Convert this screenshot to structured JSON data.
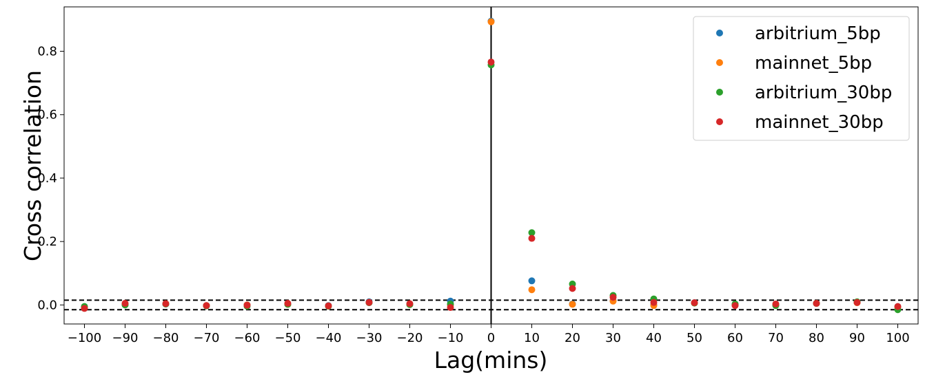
{
  "chart_data": {
    "type": "scatter",
    "title": "",
    "xlabel": "Lag(mins)",
    "ylabel": "Cross correlation",
    "xlim": [
      -105,
      105
    ],
    "ylim": [
      -0.06,
      0.94
    ],
    "xticks": [
      -100,
      -90,
      -80,
      -70,
      -60,
      -50,
      -40,
      -30,
      -20,
      -10,
      0,
      10,
      20,
      30,
      40,
      50,
      60,
      70,
      80,
      90,
      100
    ],
    "xtick_labels": [
      "−100",
      "−90",
      "−80",
      "−70",
      "−60",
      "−50",
      "−40",
      "−30",
      "−20",
      "−10",
      "0",
      "10",
      "20",
      "30",
      "40",
      "50",
      "60",
      "70",
      "80",
      "90",
      "100"
    ],
    "yticks": [
      0.0,
      0.2,
      0.4,
      0.6,
      0.8
    ],
    "ytick_labels": [
      "0.0",
      "0.2",
      "0.4",
      "0.6",
      "0.8"
    ],
    "grid": false,
    "legend_position": "top-right",
    "reference_lines": {
      "vertical_x": 0,
      "horizontal_dashed_y": [
        0.015,
        -0.015
      ]
    },
    "x": [
      -100,
      -90,
      -80,
      -70,
      -60,
      -50,
      -40,
      -30,
      -20,
      -10,
      0,
      10,
      20,
      30,
      40,
      50,
      60,
      70,
      80,
      90,
      100
    ],
    "series": [
      {
        "name": "arbitrium_5bp",
        "color": "#1f77b4",
        "values": [
          -0.005,
          0.002,
          0.003,
          -0.002,
          0.0,
          0.003,
          -0.002,
          0.01,
          0.003,
          0.012,
          0.895,
          0.076,
          0.003,
          0.013,
          0.0,
          0.007,
          0.0,
          0.0,
          0.005,
          0.008,
          -0.005
        ]
      },
      {
        "name": "mainnet_5bp",
        "color": "#ff7f0e",
        "values": [
          -0.008,
          0.003,
          0.004,
          -0.002,
          0.0,
          0.002,
          -0.003,
          0.008,
          0.002,
          0.0,
          0.893,
          0.048,
          0.002,
          0.012,
          -0.002,
          0.006,
          0.0,
          0.001,
          0.005,
          0.007,
          -0.006
        ]
      },
      {
        "name": "arbitrium_30bp",
        "color": "#2ca02c",
        "values": [
          -0.005,
          0.0,
          0.003,
          -0.003,
          -0.004,
          0.002,
          -0.004,
          0.007,
          0.001,
          0.003,
          0.757,
          0.228,
          0.066,
          0.03,
          0.019,
          0.006,
          0.003,
          -0.002,
          0.005,
          0.01,
          -0.015
        ]
      },
      {
        "name": "mainnet_30bp",
        "color": "#d62728",
        "values": [
          -0.011,
          0.005,
          0.004,
          -0.002,
          -0.001,
          0.005,
          -0.003,
          0.008,
          0.004,
          -0.008,
          0.766,
          0.21,
          0.052,
          0.024,
          0.008,
          0.007,
          -0.002,
          0.003,
          0.005,
          0.008,
          -0.005
        ]
      }
    ]
  }
}
